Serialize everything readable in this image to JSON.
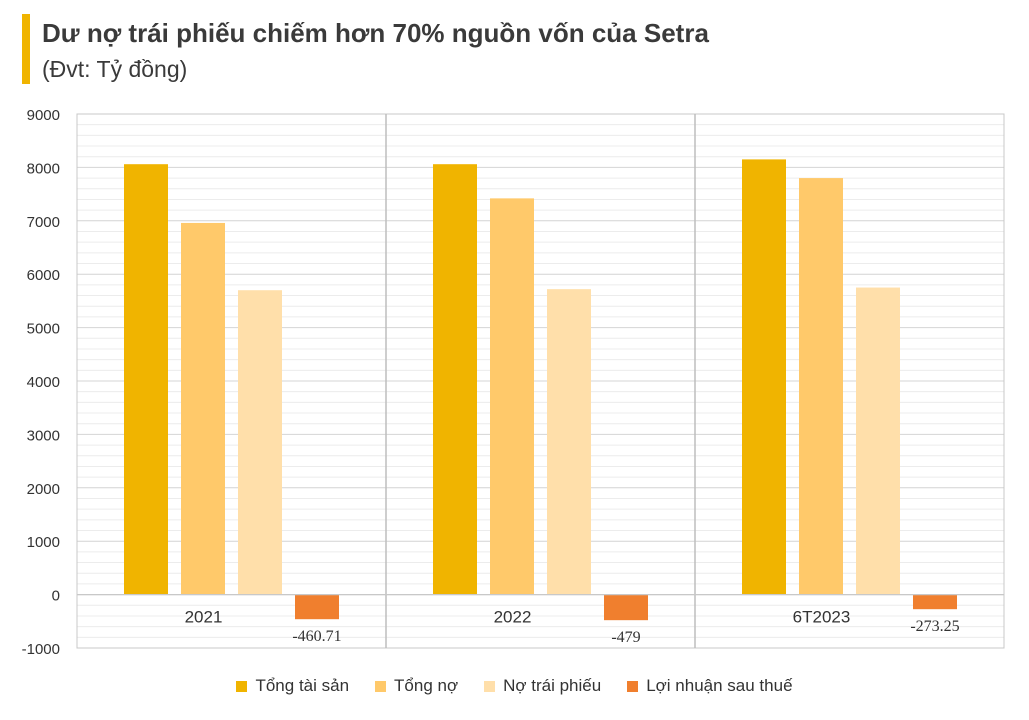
{
  "header": {
    "title": "Dư nợ trái phiếu chiếm hơn 70% nguồn vốn của Setra",
    "subtitle": "(Đvt: Tỷ đồng)"
  },
  "chart_data": {
    "type": "bar",
    "categories": [
      "2021",
      "2022",
      "6T2023"
    ],
    "series": [
      {
        "name": "Tổng tài sản",
        "color": "#F0B400",
        "values": [
          8060,
          8060,
          8150
        ]
      },
      {
        "name": "Tổng nợ",
        "color": "#FFC96A",
        "values": [
          6960,
          7420,
          7800
        ]
      },
      {
        "name": "Nợ trái phiếu",
        "color": "#FFDFAA",
        "values": [
          5700,
          5720,
          5750
        ]
      },
      {
        "name": "Lợi nhuận sau thuế",
        "color": "#F07F2E",
        "values": [
          -460.71,
          -479,
          -273.25
        ]
      }
    ],
    "data_labels": [
      "-460.71",
      "-479",
      "-273.25"
    ],
    "ylim": [
      -1000,
      9000
    ],
    "yticks": [
      "9000",
      "8000",
      "7000",
      "6000",
      "5000",
      "4000",
      "3000",
      "2000",
      "1000",
      "0",
      "-1000"
    ],
    "grid": true,
    "legend_position": "bottom"
  }
}
